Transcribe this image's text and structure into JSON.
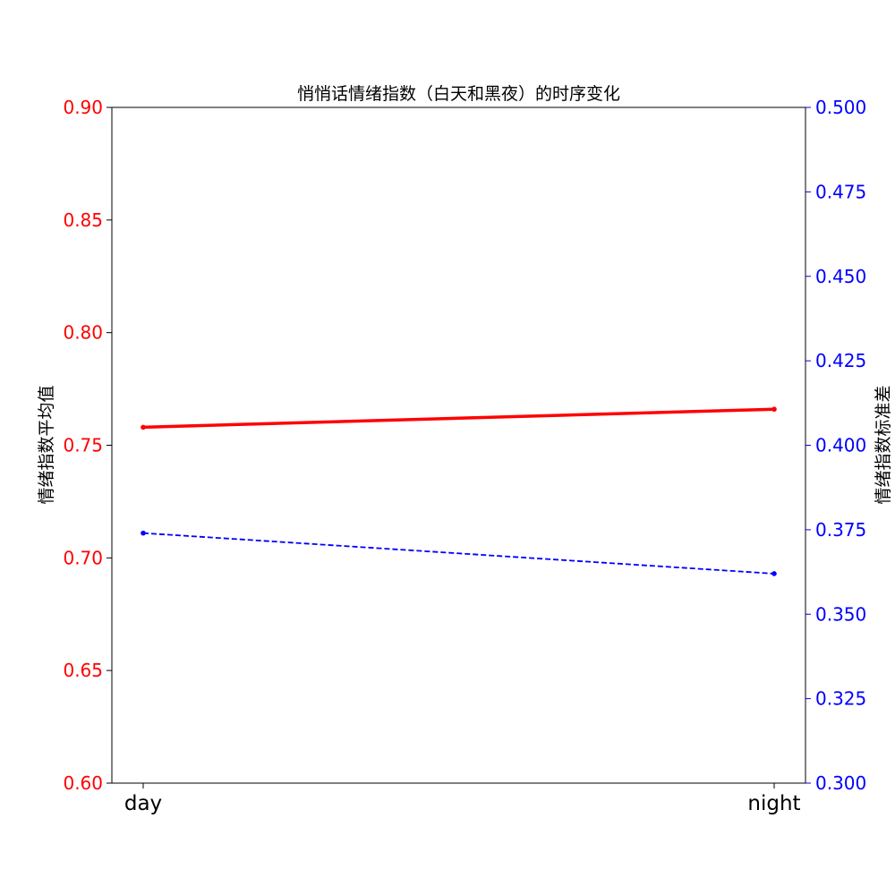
{
  "chart_data": {
    "type": "line",
    "title": "悄悄话情绪指数（白天和黑夜）的时序变化",
    "categories": [
      "day",
      "night"
    ],
    "y_left": {
      "label": "情绪指数平均值",
      "range": [
        0.6,
        0.9
      ],
      "ticks": [
        "0.60",
        "0.65",
        "0.70",
        "0.75",
        "0.80",
        "0.85",
        "0.90"
      ],
      "color": "#ff0000"
    },
    "y_right": {
      "label": "情绪指数标准差",
      "range": [
        0.3,
        0.5
      ],
      "ticks": [
        "0.300",
        "0.325",
        "0.350",
        "0.375",
        "0.400",
        "0.425",
        "0.450",
        "0.475",
        "0.500"
      ],
      "color": "#0000ff"
    },
    "series": [
      {
        "axis": "left",
        "values": [
          0.758,
          0.766
        ],
        "color": "#ff0000",
        "style": "solid"
      },
      {
        "axis": "right",
        "values": [
          0.374,
          0.362
        ],
        "color": "#0000ff",
        "style": "dashed"
      }
    ],
    "grid": false,
    "legend": "none"
  }
}
